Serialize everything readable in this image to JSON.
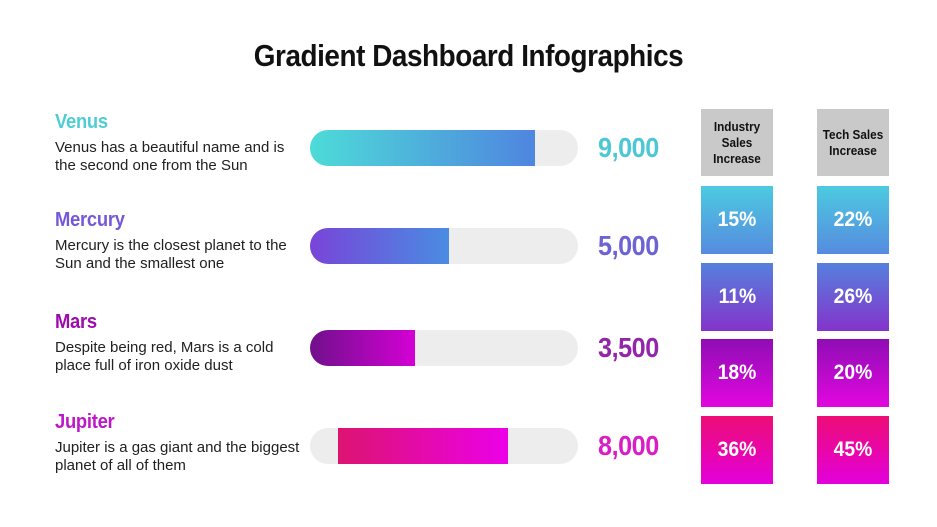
{
  "title": "Gradient Dashboard Infographics",
  "colors": {
    "background": "#ffffff",
    "title_text": "#111111",
    "body_text": "#212121",
    "bar_track": "#ededed",
    "header_tile_bg": "#c9c9c9",
    "tile_text": "#ffffff"
  },
  "rows": [
    {
      "name": "Venus",
      "name_color": "#4fcdd5",
      "description": "Venus has a beautiful name and is the second one from the Sun",
      "value": "9,000",
      "value_color": "#4cc8d5"
    },
    {
      "name": "Mercury",
      "name_color": "#7558d8",
      "description": "Mercury is the closest planet to the Sun and the smallest one",
      "value": "5,000",
      "value_color": "#6e63d4"
    },
    {
      "name": "Mars",
      "name_color": "#9c0bab",
      "description": "Despite being red, Mars is a cold place full of iron oxide dust",
      "value": "3,500",
      "value_color": "#9326a8"
    },
    {
      "name": "Jupiter",
      "name_color": "#be17c8",
      "description": "Jupiter is a gas giant and the biggest planet of all of them",
      "value": "8,000",
      "value_color": "#d81ec4"
    }
  ],
  "chart_data": {
    "type": "bar",
    "title": "Gradient Dashboard Infographics",
    "categories": [
      "Venus",
      "Mercury",
      "Mars",
      "Jupiter"
    ],
    "values": [
      9000,
      5000,
      3500,
      8000
    ],
    "value_labels": [
      "9,000",
      "5,000",
      "3,500",
      "8,000"
    ],
    "xlabel": "",
    "ylabel": "",
    "bars": [
      {
        "start_pct": 0,
        "end_pct": 84,
        "color_from": "#4ddbd8",
        "color_to": "#4f85df",
        "rounded_left": true
      },
      {
        "start_pct": 0,
        "end_pct": 52,
        "color_from": "#7845d8",
        "color_to": "#4a8ce2",
        "rounded_left": true
      },
      {
        "start_pct": 0,
        "end_pct": 39,
        "color_from": "#70108c",
        "color_to": "#d400d4",
        "rounded_left": true
      },
      {
        "start_pct": 10.5,
        "end_pct": 74,
        "color_from": "#dc1470",
        "color_to": "#ec00e8",
        "rounded_left": false
      }
    ],
    "secondary_table": {
      "columns": [
        "Industry Sales Increase",
        "Tech Sales Increase"
      ],
      "rows": [
        [
          "15%",
          "22%"
        ],
        [
          "11%",
          "26%"
        ],
        [
          "18%",
          "20%"
        ],
        [
          "36%",
          "45%"
        ]
      ],
      "tile_gradients": [
        [
          "#4ccae0",
          "#568bdf"
        ],
        [
          "#5581dd",
          "#8433cc"
        ],
        [
          "#8f0db5",
          "#e207df"
        ],
        [
          "#ed0d75",
          "#e300db"
        ]
      ]
    }
  }
}
